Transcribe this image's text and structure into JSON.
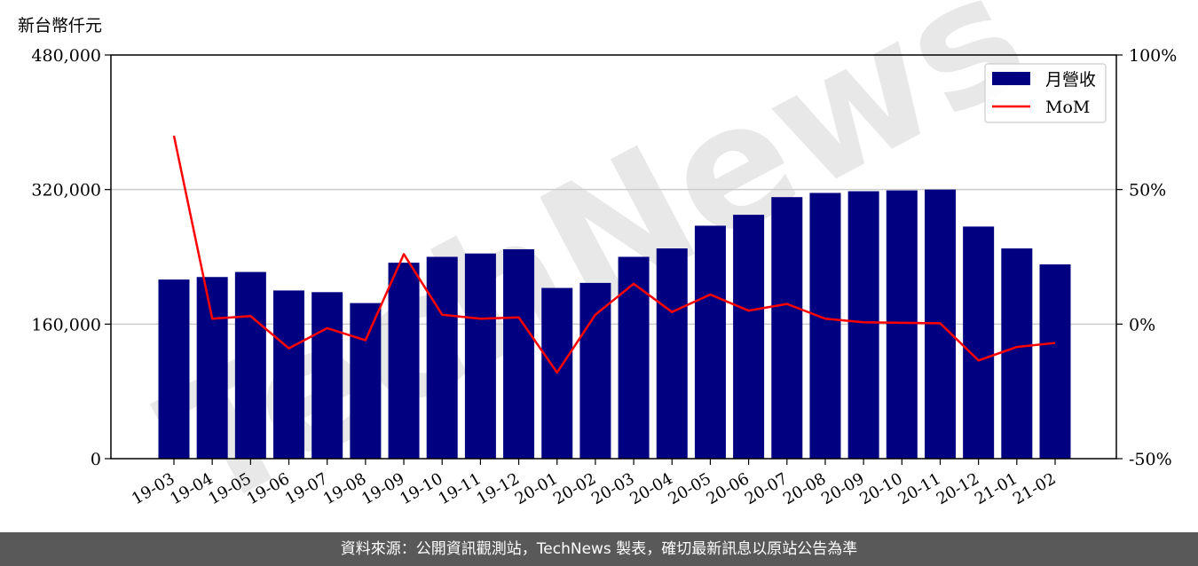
{
  "header": {
    "unit_label": "新台幣仟元"
  },
  "footer": {
    "source_text": "資料來源：公開資訊觀測站，TechNews 製表，確切最新訊息以原站公告為準"
  },
  "watermark": {
    "text": "TechNews"
  },
  "chart_data": {
    "type": "bar",
    "categories": [
      "19-03",
      "19-04",
      "19-05",
      "19-06",
      "19-07",
      "19-08",
      "19-09",
      "19-10",
      "19-11",
      "19-12",
      "20-01",
      "20-02",
      "20-03",
      "20-04",
      "20-05",
      "20-06",
      "20-07",
      "20-08",
      "20-09",
      "20-10",
      "20-11",
      "20-12",
      "21-01",
      "21-02"
    ],
    "series": [
      {
        "name": "月營收",
        "axis": "left",
        "type": "bar",
        "color": "#000080",
        "values": [
          213000,
          216000,
          222000,
          200000,
          198000,
          185000,
          233000,
          240000,
          244000,
          249000,
          203000,
          209000,
          240000,
          250000,
          277000,
          290000,
          311000,
          316000,
          318000,
          319000,
          320000,
          276000,
          250000,
          231000
        ]
      },
      {
        "name": "MoM",
        "axis": "right",
        "type": "line",
        "color": "#ff0000",
        "unit": "%",
        "values": [
          70,
          2,
          3,
          -9,
          -1.5,
          -6,
          26,
          3.5,
          2,
          2.5,
          -18,
          3.5,
          15,
          4.5,
          11,
          5,
          7.5,
          2,
          0.7,
          0.5,
          0.3,
          -13.5,
          -8.5,
          -7
        ]
      }
    ],
    "left_axis": {
      "ylim": [
        0,
        480000
      ],
      "ticks": [
        "0",
        "160,000",
        "320,000",
        "480,000"
      ],
      "tick_values": [
        0,
        160000,
        320000,
        480000
      ]
    },
    "right_axis": {
      "ylim": [
        -50,
        100
      ],
      "ticks": [
        "-50%",
        "0%",
        "50%",
        "100%"
      ],
      "tick_values": [
        -50,
        0,
        50,
        100
      ]
    },
    "grid": "horizontal",
    "legend_position": "top-right"
  }
}
